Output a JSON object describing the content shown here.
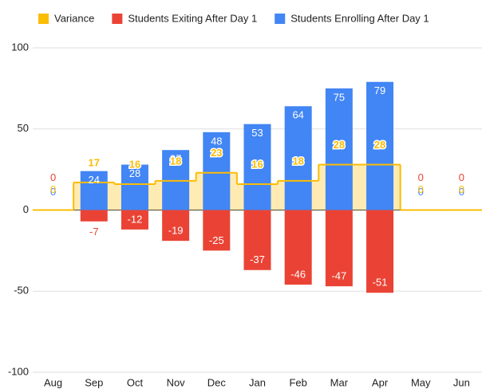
{
  "chart_data": {
    "type": "combo",
    "categories": [
      "Aug",
      "Sep",
      "Oct",
      "Nov",
      "Dec",
      "Jan",
      "Feb",
      "Mar",
      "Apr",
      "May",
      "Jun"
    ],
    "series": [
      {
        "name": "Variance",
        "color": "#fbbc04",
        "kind": "stepped-area",
        "values": [
          0,
          17,
          16,
          18,
          23,
          16,
          18,
          28,
          28,
          0,
          0
        ]
      },
      {
        "name": "Students Exiting After Day 1",
        "color": "#ea4335",
        "kind": "bar",
        "values": [
          0,
          -7,
          -12,
          -19,
          -25,
          -37,
          -46,
          -47,
          -51,
          0,
          0
        ]
      },
      {
        "name": "Students Enrolling After Day 1",
        "color": "#4285f4",
        "kind": "bar",
        "values": [
          0,
          24,
          28,
          37,
          48,
          53,
          64,
          75,
          79,
          0,
          0
        ]
      }
    ],
    "ylim": [
      -100,
      100
    ],
    "yticks": [
      -100,
      -50,
      0,
      50,
      100
    ],
    "grid": true
  }
}
